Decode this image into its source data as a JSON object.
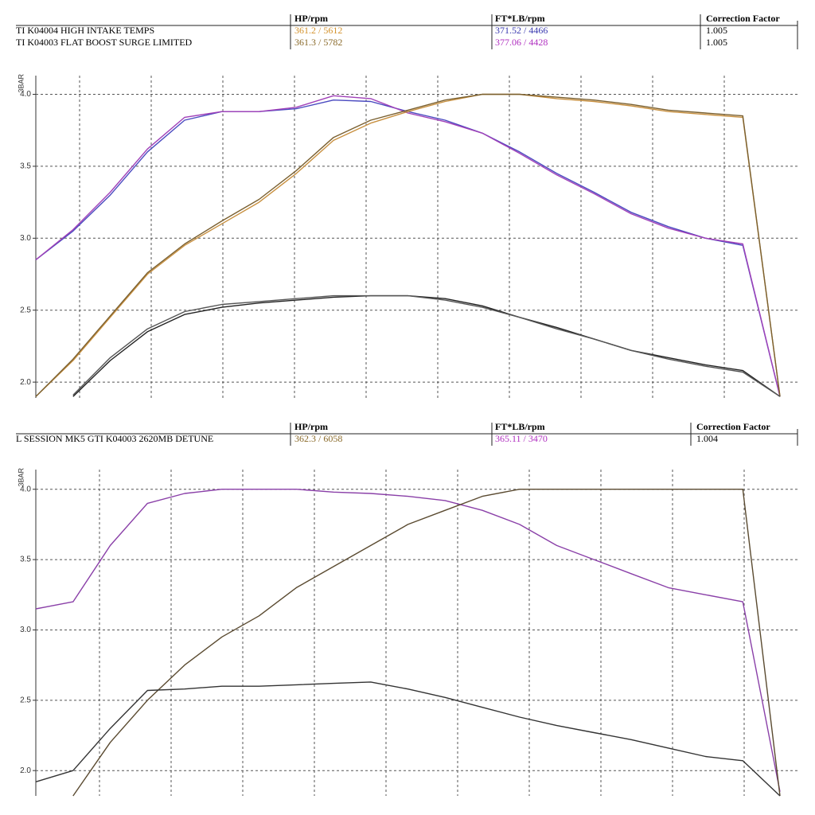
{
  "chart_data": [
    {
      "type": "line",
      "table": {
        "columns": [
          "HP/rpm",
          "FT*LB/rpm",
          "Correction Factor"
        ],
        "rows": [
          {
            "name": "TI K04004 HIGH INTAKE TEMPS",
            "hp": "361.2 / 5612",
            "hp_color": "#d4922c",
            "torque": "371.52 / 4466",
            "torque_color": "#3a3ab0",
            "factor": "1.005"
          },
          {
            "name": "TI K04003 FLAT BOOST SURGE LIMITED",
            "hp": "361.3 / 5782",
            "hp_color": "#8a6a2a",
            "torque": "377.06 / 4428",
            "torque_color": "#b030c0",
            "factor": "1.005"
          }
        ]
      },
      "ylabel": "3BAR",
      "ylim": [
        1.89,
        4.13
      ],
      "yticks": [
        {
          "value": 2,
          "label": "2.0"
        },
        {
          "value": 2.5,
          "label": "2.5"
        },
        {
          "value": 3,
          "label": "3.0"
        },
        {
          "value": 3.5,
          "label": "3.5"
        },
        {
          "value": 4,
          "label": "4.0"
        }
      ],
      "grid": true,
      "series": [
        {
          "color": "#4a4ac0",
          "values": [
            2.85,
            3.05,
            3.3,
            3.6,
            3.82,
            3.88,
            3.88,
            3.9,
            3.96,
            3.95,
            3.88,
            3.82,
            3.73,
            3.6,
            3.45,
            3.32,
            3.18,
            3.08,
            3.0,
            2.95,
            1.9
          ]
        },
        {
          "color": "#a040b8",
          "values": [
            2.85,
            3.06,
            3.32,
            3.62,
            3.84,
            3.88,
            3.88,
            3.91,
            3.99,
            3.97,
            3.87,
            3.81,
            3.73,
            3.59,
            3.44,
            3.31,
            3.17,
            3.07,
            3.0,
            2.96,
            1.9
          ]
        },
        {
          "color": "#c89040",
          "values": [
            1.9,
            2.15,
            2.45,
            2.75,
            2.95,
            3.1,
            3.25,
            3.45,
            3.68,
            3.8,
            3.88,
            3.95,
            4.0,
            4.0,
            3.97,
            3.95,
            3.92,
            3.88,
            3.86,
            3.84,
            1.9
          ]
        },
        {
          "color": "#7a6030",
          "values": [
            1.9,
            2.16,
            2.46,
            2.76,
            2.96,
            3.12,
            3.27,
            3.47,
            3.7,
            3.82,
            3.89,
            3.96,
            4.0,
            4.0,
            3.98,
            3.96,
            3.93,
            3.89,
            3.87,
            3.85,
            1.9
          ]
        },
        {
          "color": "#222222",
          "values": [
            null,
            1.9,
            2.15,
            2.35,
            2.47,
            2.52,
            2.55,
            2.57,
            2.59,
            2.6,
            2.6,
            2.58,
            2.53,
            2.45,
            2.38,
            2.3,
            2.22,
            2.17,
            2.12,
            2.08,
            1.9
          ]
        },
        {
          "color": "#555555",
          "values": [
            null,
            1.91,
            2.17,
            2.37,
            2.49,
            2.54,
            2.56,
            2.58,
            2.6,
            2.6,
            2.6,
            2.57,
            2.52,
            2.45,
            2.37,
            2.3,
            2.22,
            2.16,
            2.11,
            2.07,
            1.9
          ]
        }
      ]
    },
    {
      "type": "line",
      "table": {
        "columns": [
          "HP/rpm",
          "FT*LB/rpm",
          "Correction Factor"
        ],
        "rows": [
          {
            "name": "L SESSION MK5 GTI K04003 2620MB DETUNE",
            "hp": "362.3 / 6058",
            "hp_color": "#8a6a2a",
            "torque": "365.11 / 3470",
            "torque_color": "#b030c0",
            "factor": "1.004"
          }
        ]
      },
      "ylabel": "3BAR",
      "ylim": [
        1.82,
        4.14
      ],
      "yticks": [
        {
          "value": 2,
          "label": "2.0"
        },
        {
          "value": 2.5,
          "label": "2.5"
        },
        {
          "value": 3,
          "label": "3.0"
        },
        {
          "value": 3.5,
          "label": "3.5"
        },
        {
          "value": 4,
          "label": "4.0"
        }
      ],
      "grid": true,
      "series": [
        {
          "color": "#8a40a8",
          "values": [
            3.15,
            3.2,
            3.6,
            3.9,
            3.97,
            4.0,
            4.0,
            4.0,
            3.98,
            3.97,
            3.95,
            3.92,
            3.85,
            3.75,
            3.6,
            3.5,
            3.4,
            3.3,
            3.25,
            3.2,
            1.85
          ]
        },
        {
          "color": "#5a4a30",
          "values": [
            null,
            1.82,
            2.2,
            2.5,
            2.75,
            2.95,
            3.1,
            3.3,
            3.45,
            3.6,
            3.75,
            3.85,
            3.95,
            4.0,
            4.0,
            4.0,
            4.0,
            4.0,
            4.0,
            4.0,
            1.82
          ]
        },
        {
          "color": "#333333",
          "values": [
            1.92,
            2.0,
            2.3,
            2.57,
            2.58,
            2.6,
            2.6,
            2.61,
            2.62,
            2.63,
            2.58,
            2.52,
            2.45,
            2.38,
            2.32,
            2.27,
            2.22,
            2.16,
            2.1,
            2.07,
            1.82
          ]
        }
      ]
    }
  ]
}
